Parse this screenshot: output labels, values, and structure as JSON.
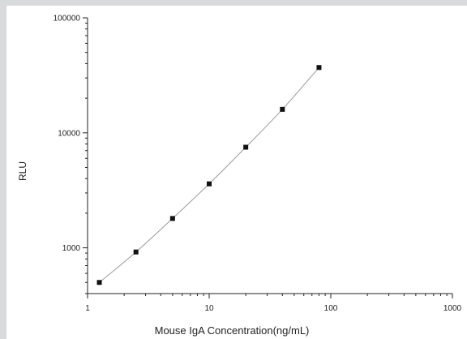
{
  "chart_data": {
    "type": "scatter",
    "title": "",
    "xlabel": "Mouse IgA Concentration(ng/mL)",
    "ylabel": "RLU",
    "xscale": "log",
    "yscale": "log",
    "xlim": [
      1,
      1000
    ],
    "ylim": [
      400,
      100000
    ],
    "x_ticks": [
      1,
      10,
      100,
      1000
    ],
    "x_tick_labels": [
      "1",
      "10",
      "100",
      "1000"
    ],
    "y_ticks": [
      1000,
      10000,
      100000
    ],
    "y_tick_labels": [
      "1000",
      "10000",
      "100000"
    ],
    "grid": false,
    "legend": "none",
    "fit_line": true,
    "series": [
      {
        "x": [
          1.25,
          2.5,
          5,
          10,
          20,
          40,
          80
        ],
        "y": [
          500,
          920,
          1800,
          3600,
          7500,
          16000,
          37000
        ]
      }
    ],
    "colors": {
      "marker": "#111111",
      "fit": "#9a9a9a",
      "axis": "#222222"
    }
  }
}
